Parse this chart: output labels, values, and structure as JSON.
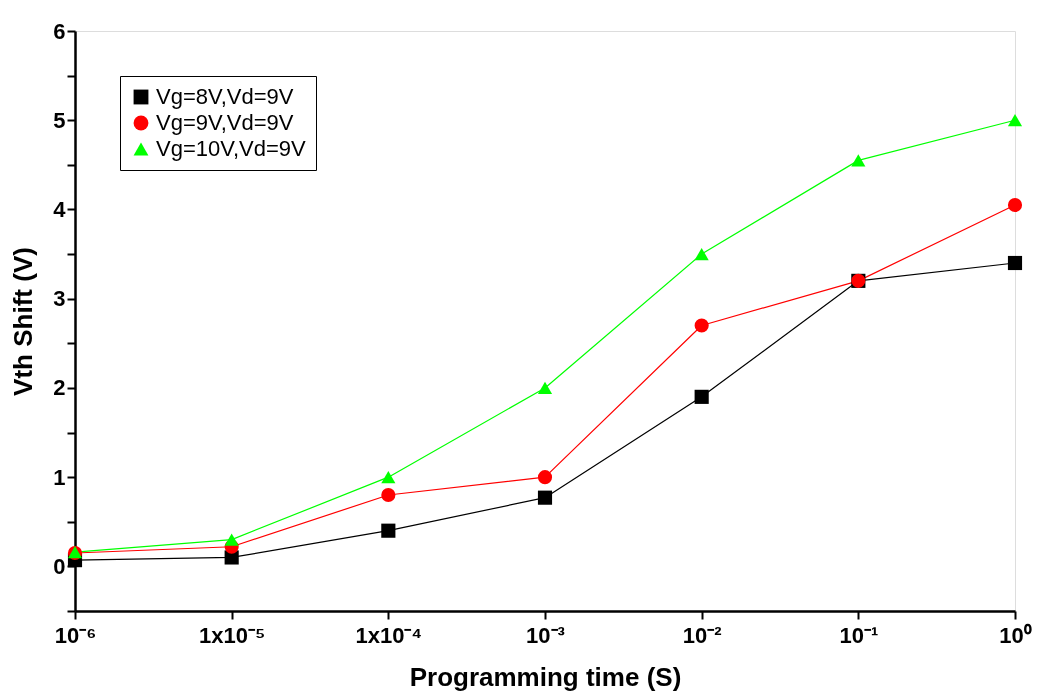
{
  "chart_data": {
    "type": "line",
    "xlabel": "Programming time (S)",
    "ylabel": "Vth Shift (V)",
    "x": [
      1e-06,
      1e-05,
      0.0001,
      0.001,
      0.01,
      0.1,
      1
    ],
    "series": [
      {
        "name": "Vg=8V,Vd=9V",
        "color": "#000000",
        "marker": "square",
        "values": [
          0.07,
          0.1,
          0.4,
          0.77,
          1.9,
          3.2,
          3.4
        ]
      },
      {
        "name": "Vg=9V,Vd=9V",
        "color": "#ff0000",
        "marker": "circle",
        "values": [
          0.15,
          0.22,
          0.8,
          1.0,
          2.7,
          3.2,
          4.05
        ]
      },
      {
        "name": "Vg=10V,Vd=9V",
        "color": "#00ff00",
        "marker": "triangle",
        "values": [
          0.16,
          0.3,
          1.0,
          2.0,
          3.5,
          4.55,
          5.0
        ]
      }
    ],
    "log": "x",
    "xlim": [
      1e-06,
      1
    ],
    "ylim": [
      -0.5,
      6
    ],
    "xticks": [
      {
        "value": 1e-06,
        "label": "10⁻⁶"
      },
      {
        "value": 1e-05,
        "label": "1x10⁻⁵"
      },
      {
        "value": 0.0001,
        "label": "1x10⁻⁴"
      },
      {
        "value": 0.001,
        "label": "10⁻³"
      },
      {
        "value": 0.01,
        "label": "10⁻²"
      },
      {
        "value": 0.1,
        "label": "10⁻¹"
      },
      {
        "value": 1,
        "label": "10⁰"
      }
    ],
    "yticks": [
      {
        "value": -0.5,
        "label": null
      },
      0,
      {
        "value": 0.5,
        "label": null
      },
      1,
      {
        "value": 1.5,
        "label": null
      },
      2,
      {
        "value": 2.5,
        "label": null
      },
      3,
      {
        "value": 3.5,
        "label": null
      },
      4,
      {
        "value": 4.5,
        "label": null
      },
      5,
      {
        "value": 5.5,
        "label": null
      },
      6
    ],
    "grid": false,
    "legend": "top left",
    "line_style": "solid"
  }
}
